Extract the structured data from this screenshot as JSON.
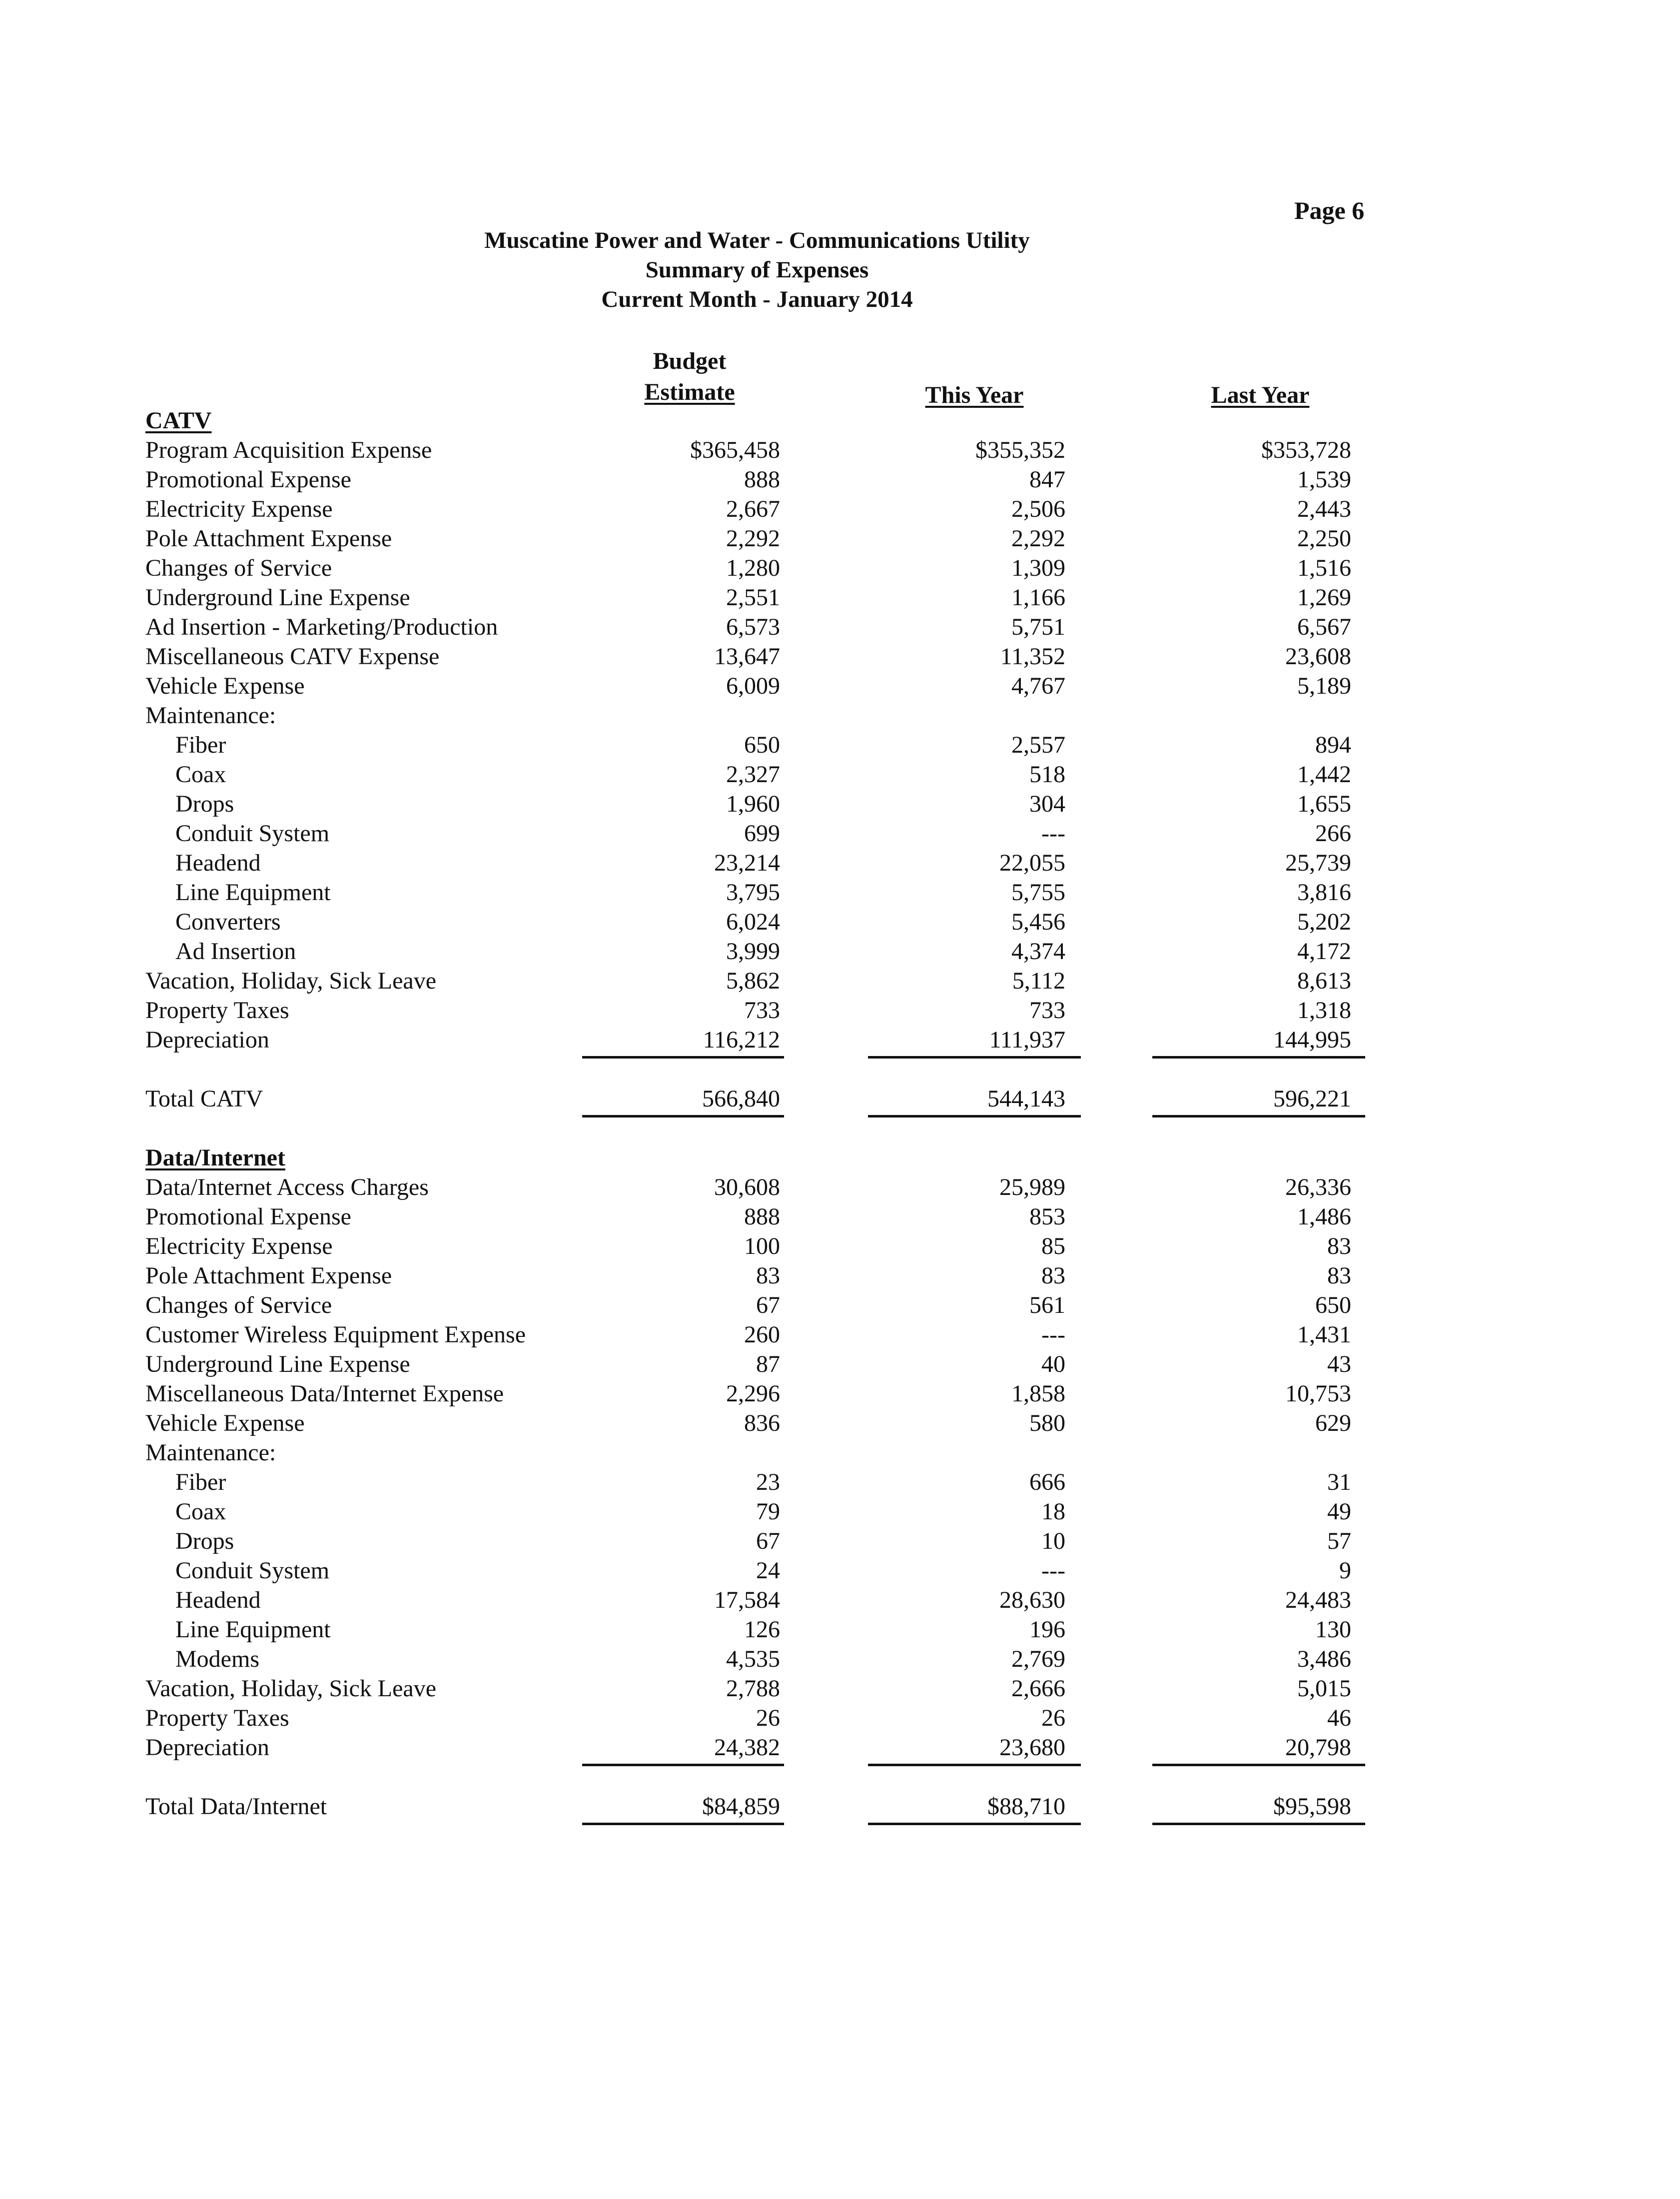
{
  "page_number": "Page 6",
  "title": {
    "line1": "Muscatine Power and Water - Communications Utility",
    "line2": "Summary of Expenses",
    "line3": "Current Month - January 2014"
  },
  "columns": {
    "budget_top": "Budget",
    "budget_bottom": "Estimate",
    "this_year": "This Year",
    "last_year": "Last Year"
  },
  "rows": [
    {
      "type": "section",
      "label": "CATV"
    },
    {
      "label": "Program Acquisition Expense",
      "values": [
        "$365,458",
        "$355,352",
        "$353,728"
      ]
    },
    {
      "label": "Promotional Expense",
      "values": [
        "888",
        "847",
        "1,539"
      ]
    },
    {
      "label": "Electricity Expense",
      "values": [
        "2,667",
        "2,506",
        "2,443"
      ]
    },
    {
      "label": "Pole Attachment Expense",
      "values": [
        "2,292",
        "2,292",
        "2,250"
      ]
    },
    {
      "label": "Changes of Service",
      "values": [
        "1,280",
        "1,309",
        "1,516"
      ]
    },
    {
      "label": "Underground Line Expense",
      "values": [
        "2,551",
        "1,166",
        "1,269"
      ]
    },
    {
      "label": "Ad Insertion - Marketing/Production",
      "values": [
        "6,573",
        "5,751",
        "6,567"
      ]
    },
    {
      "label": "Miscellaneous CATV Expense",
      "values": [
        "13,647",
        "11,352",
        "23,608"
      ]
    },
    {
      "label": "Vehicle Expense",
      "values": [
        "6,009",
        "4,767",
        "5,189"
      ]
    },
    {
      "label": "Maintenance:"
    },
    {
      "label": "Fiber",
      "indent": true,
      "values": [
        "650",
        "2,557",
        "894"
      ]
    },
    {
      "label": "Coax",
      "indent": true,
      "values": [
        "2,327",
        "518",
        "1,442"
      ]
    },
    {
      "label": "Drops",
      "indent": true,
      "values": [
        "1,960",
        "304",
        "1,655"
      ]
    },
    {
      "label": "Conduit System",
      "indent": true,
      "values": [
        "699",
        "---",
        "266"
      ]
    },
    {
      "label": "Headend",
      "indent": true,
      "values": [
        "23,214",
        "22,055",
        "25,739"
      ]
    },
    {
      "label": "Line Equipment",
      "indent": true,
      "values": [
        "3,795",
        "5,755",
        "3,816"
      ]
    },
    {
      "label": "Converters",
      "indent": true,
      "values": [
        "6,024",
        "5,456",
        "5,202"
      ]
    },
    {
      "label": "Ad Insertion",
      "indent": true,
      "values": [
        "3,999",
        "4,374",
        "4,172"
      ]
    },
    {
      "label": "Vacation, Holiday, Sick Leave",
      "values": [
        "5,862",
        "5,112",
        "8,613"
      ]
    },
    {
      "label": "Property Taxes",
      "values": [
        "733",
        "733",
        "1,318"
      ]
    },
    {
      "label": "Depreciation",
      "rule": true,
      "values": [
        "116,212",
        "111,937",
        "144,995"
      ]
    },
    {
      "type": "spacer"
    },
    {
      "type": "total",
      "label": "Total CATV",
      "rule": true,
      "values": [
        "566,840",
        "544,143",
        "596,221"
      ]
    },
    {
      "type": "spacer"
    },
    {
      "type": "section",
      "label": "Data/Internet"
    },
    {
      "label": "Data/Internet Access Charges",
      "values": [
        "30,608",
        "25,989",
        "26,336"
      ]
    },
    {
      "label": "Promotional Expense",
      "values": [
        "888",
        "853",
        "1,486"
      ]
    },
    {
      "label": "Electricity Expense",
      "values": [
        "100",
        "85",
        "83"
      ]
    },
    {
      "label": "Pole Attachment Expense",
      "values": [
        "83",
        "83",
        "83"
      ]
    },
    {
      "label": "Changes of Service",
      "values": [
        "67",
        "561",
        "650"
      ]
    },
    {
      "label": "Customer Wireless Equipment Expense",
      "values": [
        "260",
        "---",
        "1,431"
      ]
    },
    {
      "label": "Underground Line Expense",
      "values": [
        "87",
        "40",
        "43"
      ]
    },
    {
      "label": "Miscellaneous Data/Internet Expense",
      "values": [
        "2,296",
        "1,858",
        "10,753"
      ]
    },
    {
      "label": "Vehicle Expense",
      "values": [
        "836",
        "580",
        "629"
      ]
    },
    {
      "label": "Maintenance:"
    },
    {
      "label": "Fiber",
      "indent": true,
      "values": [
        "23",
        "666",
        "31"
      ]
    },
    {
      "label": "Coax",
      "indent": true,
      "values": [
        "79",
        "18",
        "49"
      ]
    },
    {
      "label": "Drops",
      "indent": true,
      "values": [
        "67",
        "10",
        "57"
      ]
    },
    {
      "label": "Conduit System",
      "indent": true,
      "values": [
        "24",
        "---",
        "9"
      ]
    },
    {
      "label": "Headend",
      "indent": true,
      "values": [
        "17,584",
        "28,630",
        "24,483"
      ]
    },
    {
      "label": "Line Equipment",
      "indent": true,
      "values": [
        "126",
        "196",
        "130"
      ]
    },
    {
      "label": "Modems",
      "indent": true,
      "values": [
        "4,535",
        "2,769",
        "3,486"
      ]
    },
    {
      "label": "Vacation, Holiday, Sick Leave",
      "values": [
        "2,788",
        "2,666",
        "5,015"
      ]
    },
    {
      "label": "Property Taxes",
      "values": [
        "26",
        "26",
        "46"
      ]
    },
    {
      "label": "Depreciation",
      "rule": true,
      "values": [
        "24,382",
        "23,680",
        "20,798"
      ]
    },
    {
      "type": "spacer"
    },
    {
      "type": "total",
      "label": "Total Data/Internet",
      "rule": true,
      "values": [
        "$84,859",
        "$88,710",
        "$95,598"
      ]
    }
  ]
}
